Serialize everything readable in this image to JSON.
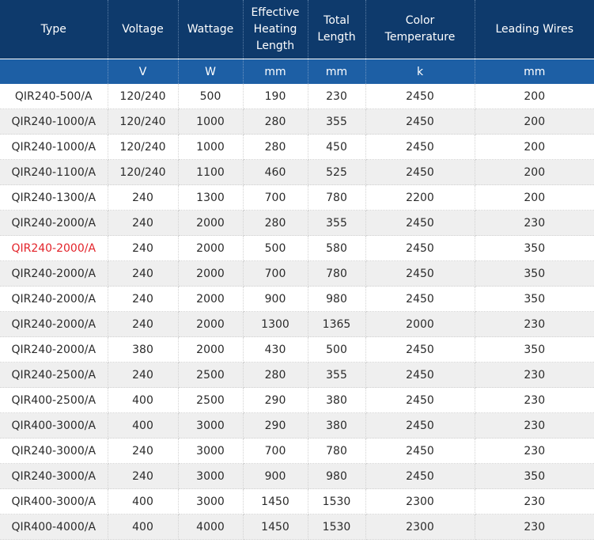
{
  "colors": {
    "header_bg": "#0e3a6c",
    "units_bg": "#1d5fa5",
    "row_alt_bg": "#efefef",
    "highlight_text": "#e3232a"
  },
  "headers": [
    {
      "label": "Type",
      "unit": ""
    },
    {
      "label": "Voltage",
      "unit": "V"
    },
    {
      "label": "Wattage",
      "unit": "W"
    },
    {
      "label": "Effective Heating Length",
      "unit": "mm"
    },
    {
      "label": "Total Length",
      "unit": "mm"
    },
    {
      "label": "Color Temperature",
      "unit": "k"
    },
    {
      "label": "Leading Wires",
      "unit": "mm"
    }
  ],
  "rows": [
    {
      "type": "QIR240-500/A",
      "voltage": "120/240",
      "wattage": "500",
      "effective": "190",
      "total": "230",
      "color_temp": "2450",
      "wires": "200",
      "highlight": false
    },
    {
      "type": "QIR240-1000/A",
      "voltage": "120/240",
      "wattage": "1000",
      "effective": "280",
      "total": "355",
      "color_temp": "2450",
      "wires": "200",
      "highlight": false
    },
    {
      "type": "QIR240-1000/A",
      "voltage": "120/240",
      "wattage": "1000",
      "effective": "280",
      "total": "450",
      "color_temp": "2450",
      "wires": "200",
      "highlight": false
    },
    {
      "type": "QIR240-1100/A",
      "voltage": "120/240",
      "wattage": "1100",
      "effective": "460",
      "total": "525",
      "color_temp": "2450",
      "wires": "200",
      "highlight": false
    },
    {
      "type": "QIR240-1300/A",
      "voltage": "240",
      "wattage": "1300",
      "effective": "700",
      "total": "780",
      "color_temp": "2200",
      "wires": "200",
      "highlight": false
    },
    {
      "type": "QIR240-2000/A",
      "voltage": "240",
      "wattage": "2000",
      "effective": "280",
      "total": "355",
      "color_temp": "2450",
      "wires": "230",
      "highlight": false
    },
    {
      "type": "QIR240-2000/A",
      "voltage": "240",
      "wattage": "2000",
      "effective": "500",
      "total": "580",
      "color_temp": "2450",
      "wires": "350",
      "highlight": true
    },
    {
      "type": "QIR240-2000/A",
      "voltage": "240",
      "wattage": "2000",
      "effective": "700",
      "total": "780",
      "color_temp": "2450",
      "wires": "350",
      "highlight": false
    },
    {
      "type": "QIR240-2000/A",
      "voltage": "240",
      "wattage": "2000",
      "effective": "900",
      "total": "980",
      "color_temp": "2450",
      "wires": "350",
      "highlight": false
    },
    {
      "type": "QIR240-2000/A",
      "voltage": "240",
      "wattage": "2000",
      "effective": "1300",
      "total": "1365",
      "color_temp": "2000",
      "wires": "230",
      "highlight": false
    },
    {
      "type": "QIR240-2000/A",
      "voltage": "380",
      "wattage": "2000",
      "effective": "430",
      "total": "500",
      "color_temp": "2450",
      "wires": "350",
      "highlight": false
    },
    {
      "type": "QIR240-2500/A",
      "voltage": "240",
      "wattage": "2500",
      "effective": "280",
      "total": "355",
      "color_temp": "2450",
      "wires": "230",
      "highlight": false
    },
    {
      "type": "QIR400-2500/A",
      "voltage": "400",
      "wattage": "2500",
      "effective": "290",
      "total": "380",
      "color_temp": "2450",
      "wires": "230",
      "highlight": false
    },
    {
      "type": "QIR400-3000/A",
      "voltage": "400",
      "wattage": "3000",
      "effective": "290",
      "total": "380",
      "color_temp": "2450",
      "wires": "230",
      "highlight": false
    },
    {
      "type": "QIR240-3000/A",
      "voltage": "240",
      "wattage": "3000",
      "effective": "700",
      "total": "780",
      "color_temp": "2450",
      "wires": "230",
      "highlight": false
    },
    {
      "type": "QIR240-3000/A",
      "voltage": "240",
      "wattage": "3000",
      "effective": "900",
      "total": "980",
      "color_temp": "2450",
      "wires": "350",
      "highlight": false
    },
    {
      "type": "QIR400-3000/A",
      "voltage": "400",
      "wattage": "3000",
      "effective": "1450",
      "total": "1530",
      "color_temp": "2300",
      "wires": "230",
      "highlight": false
    },
    {
      "type": "QIR400-4000/A",
      "voltage": "400",
      "wattage": "4000",
      "effective": "1450",
      "total": "1530",
      "color_temp": "2300",
      "wires": "230",
      "highlight": false
    }
  ]
}
